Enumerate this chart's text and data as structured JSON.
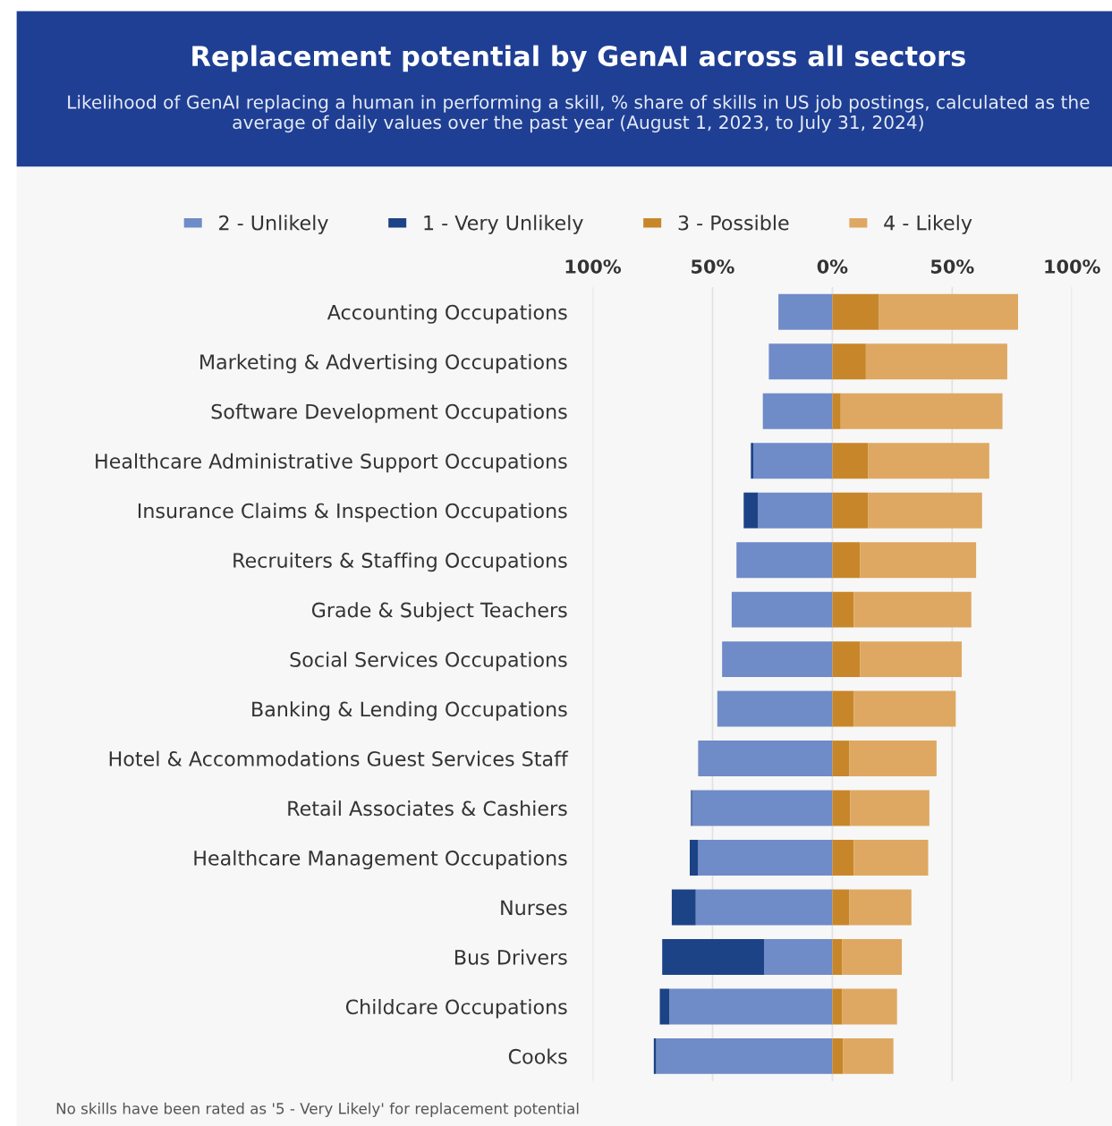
{
  "chart_data": {
    "type": "bar",
    "orientation": "horizontal",
    "stacked": true,
    "title": "Replacement potential by GenAI across all sectors",
    "subtitle": "Likelihood of GenAI replacing a human in performing a skill, % share of skills in US job postings, calculated as the average of daily values over the past year (August 1, 2023, to July 31, 2024)",
    "categories": [
      "Accounting Occupations",
      "Marketing & Advertising Occupations",
      "Software Development Occupations",
      "Healthcare Administrative Support Occupations",
      "Insurance Claims & Inspection Occupations",
      "Recruiters & Staffing Occupations",
      "Grade & Subject Teachers",
      "Social Services Occupations",
      "Banking & Lending Occupations",
      "Hotel & Accommodations Guest Services Staff",
      "Retail Associates & Cashiers",
      "Healthcare Management Occupations",
      "Nurses",
      "Bus Drivers",
      "Childcare Occupations",
      "Cooks"
    ],
    "series": [
      {
        "name": "2 - Unlikely",
        "color": "#6f8bc8",
        "values": [
          -22.5,
          -26.5,
          -29,
          -33,
          -31,
          -40,
          -42,
          -46,
          -48,
          -56,
          -58.5,
          -56,
          -57,
          -28.5,
          -68,
          -73.5
        ]
      },
      {
        "name": "1 - Very Unlikely",
        "color": "#1c4386",
        "values": [
          0,
          0,
          0,
          -1,
          -6,
          0,
          0,
          0,
          0,
          0,
          -0.5,
          -3.5,
          -10,
          -42.5,
          -4,
          -1
        ]
      },
      {
        "name": "3 - Possible",
        "color": "#c8862a",
        "values": [
          19.5,
          14,
          3.5,
          15,
          15,
          11.5,
          9,
          11.5,
          9,
          7,
          7.5,
          9,
          7,
          4,
          4,
          4.5
        ]
      },
      {
        "name": "4 - Likely",
        "color": "#dea862",
        "values": [
          58,
          59,
          67.5,
          50.5,
          47.5,
          48.5,
          49,
          42.5,
          42.5,
          36.5,
          33,
          31,
          26,
          25,
          23,
          21
        ]
      }
    ],
    "xlim": [
      -100,
      100
    ],
    "xticks": [
      {
        "value": -100,
        "label": "100%"
      },
      {
        "value": -50,
        "label": "50%"
      },
      {
        "value": 0,
        "label": "0%"
      },
      {
        "value": 50,
        "label": "50%"
      },
      {
        "value": 100,
        "label": "100%"
      }
    ],
    "grid": "x",
    "legend": "top",
    "annotations": [
      "No skills have been rated as '5 - Very Likely' for replacement potential"
    ]
  }
}
